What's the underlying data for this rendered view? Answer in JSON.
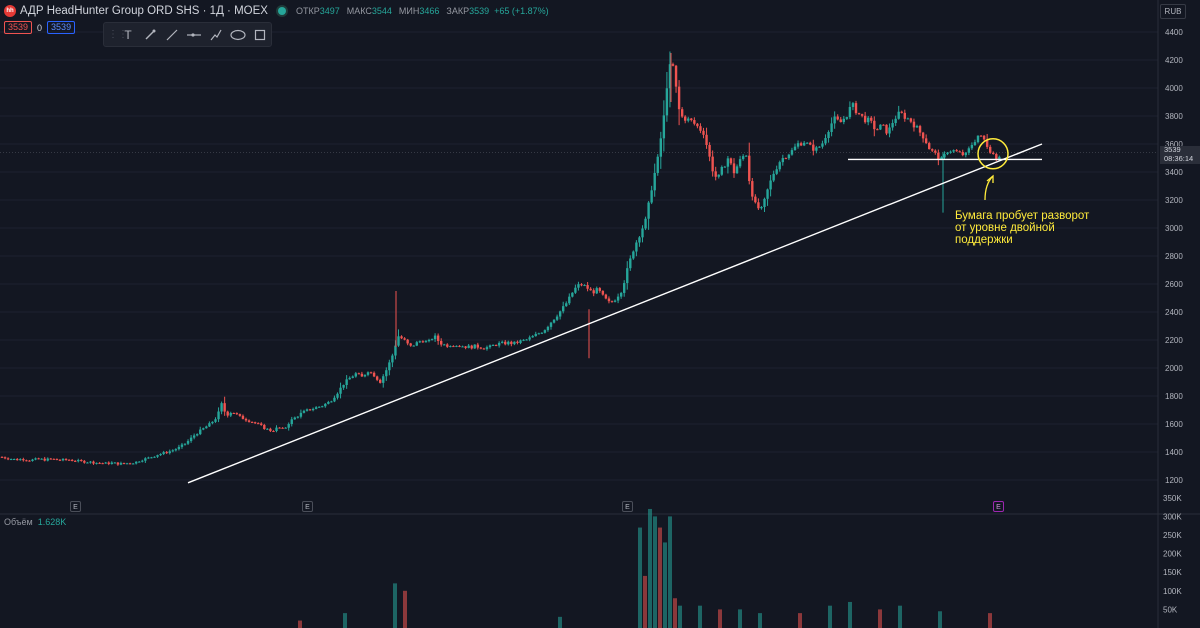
{
  "header": {
    "logo_text": "hh",
    "title": "АДР HeadHunter Group ORD SHS · 1Д · MOEX",
    "open_label": "ОТКР",
    "open": "3497",
    "high_label": "МАКС",
    "high": "3544",
    "low_label": "МИН",
    "low": "3466",
    "close_label": "ЗАКР",
    "close": "3539",
    "change": "+65 (+1.87%)"
  },
  "price_boxes": {
    "sell": "3539",
    "spread": "0",
    "buy": "3539"
  },
  "toolbar": {
    "icons": [
      "text-icon",
      "brush-icon",
      "line-icon",
      "horizontal-ray-icon",
      "path-icon",
      "ellipse-icon",
      "rectangle-icon"
    ]
  },
  "currency": "RUB",
  "current_price": {
    "price": "3539",
    "timer": "08:36:14"
  },
  "events": {
    "label": "E"
  },
  "volume": {
    "label": "Объём",
    "value": "1.628K"
  },
  "annotation": {
    "lines": [
      "Бумага пробует разворот",
      "от уровне двойной",
      "поддержки"
    ]
  },
  "colors": {
    "up": "#26a69a",
    "down": "#ef5350",
    "annotation": "#ffeb3b",
    "background": "#131722"
  },
  "chart_data": {
    "type": "candlestick",
    "price_axis": {
      "ticks": [
        1200,
        1400,
        1600,
        1800,
        2000,
        2200,
        2400,
        2600,
        2800,
        3000,
        3200,
        3400,
        3600,
        3800,
        4000,
        4200,
        4400
      ],
      "tick_labels": [
        "1200",
        "1400",
        "1600",
        "1800",
        "2000",
        "2200",
        "2400",
        "2600",
        "2800",
        "3000",
        "3200",
        "3400",
        "3600",
        "3800",
        "4000",
        "4200",
        "4400"
      ],
      "ylim": [
        1130,
        4530
      ]
    },
    "volume_axis": {
      "ticks": [
        0,
        50000,
        100000,
        150000,
        200000,
        250000,
        300000,
        350000
      ],
      "tick_labels": [
        "50K",
        "100K",
        "150K",
        "200K",
        "250K",
        "300K",
        "350K"
      ]
    },
    "close_path": [
      [
        0,
        1365
      ],
      [
        8,
        1355
      ],
      [
        16,
        1345
      ],
      [
        22,
        1350
      ],
      [
        30,
        1340
      ],
      [
        38,
        1350
      ],
      [
        45,
        1345
      ],
      [
        52,
        1350
      ],
      [
        60,
        1342
      ],
      [
        68,
        1345
      ],
      [
        75,
        1338
      ],
      [
        82,
        1332
      ],
      [
        90,
        1328
      ],
      [
        98,
        1322
      ],
      [
        105,
        1318
      ],
      [
        112,
        1322
      ],
      [
        120,
        1315
      ],
      [
        128,
        1320
      ],
      [
        135,
        1325
      ],
      [
        142,
        1345
      ],
      [
        150,
        1360
      ],
      [
        157,
        1380
      ],
      [
        165,
        1395
      ],
      [
        172,
        1410
      ],
      [
        180,
        1435
      ],
      [
        187,
        1470
      ],
      [
        195,
        1525
      ],
      [
        202,
        1560
      ],
      [
        210,
        1600
      ],
      [
        217,
        1650
      ],
      [
        222,
        1750
      ],
      [
        226,
        1660
      ],
      [
        232,
        1690
      ],
      [
        240,
        1650
      ],
      [
        247,
        1630
      ],
      [
        254,
        1610
      ],
      [
        260,
        1590
      ],
      [
        266,
        1565
      ],
      [
        272,
        1550
      ],
      [
        278,
        1575
      ],
      [
        284,
        1560
      ],
      [
        290,
        1620
      ],
      [
        296,
        1650
      ],
      [
        302,
        1680
      ],
      [
        308,
        1700
      ],
      [
        315,
        1715
      ],
      [
        322,
        1730
      ],
      [
        330,
        1760
      ],
      [
        337,
        1820
      ],
      [
        344,
        1890
      ],
      [
        350,
        1930
      ],
      [
        356,
        1960
      ],
      [
        362,
        1935
      ],
      [
        368,
        1980
      ],
      [
        374,
        1950
      ],
      [
        380,
        1900
      ],
      [
        386,
        1980
      ],
      [
        392,
        2080
      ],
      [
        398,
        2230
      ],
      [
        404,
        2200
      ],
      [
        410,
        2150
      ],
      [
        416,
        2175
      ],
      [
        422,
        2200
      ],
      [
        428,
        2180
      ],
      [
        434,
        2230
      ],
      [
        440,
        2180
      ],
      [
        446,
        2160
      ],
      [
        452,
        2170
      ],
      [
        460,
        2160
      ],
      [
        468,
        2150
      ],
      [
        476,
        2155
      ],
      [
        484,
        2145
      ],
      [
        490,
        2150
      ],
      [
        496,
        2170
      ],
      [
        502,
        2175
      ],
      [
        508,
        2180
      ],
      [
        514,
        2175
      ],
      [
        520,
        2190
      ],
      [
        526,
        2200
      ],
      [
        532,
        2220
      ],
      [
        538,
        2245
      ],
      [
        544,
        2270
      ],
      [
        550,
        2320
      ],
      [
        556,
        2370
      ],
      [
        562,
        2420
      ],
      [
        568,
        2480
      ],
      [
        574,
        2560
      ],
      [
        580,
        2600
      ],
      [
        586,
        2580
      ],
      [
        592,
        2540
      ],
      [
        598,
        2560
      ],
      [
        604,
        2500
      ],
      [
        610,
        2460
      ],
      [
        616,
        2500
      ],
      [
        622,
        2560
      ],
      [
        628,
        2720
      ],
      [
        634,
        2860
      ],
      [
        640,
        2960
      ],
      [
        646,
        3060
      ],
      [
        652,
        3300
      ],
      [
        658,
        3500
      ],
      [
        664,
        3800
      ],
      [
        668,
        4100
      ],
      [
        672,
        4200
      ],
      [
        676,
        4000
      ],
      [
        680,
        3800
      ],
      [
        686,
        3780
      ],
      [
        692,
        3760
      ],
      [
        698,
        3720
      ],
      [
        704,
        3680
      ],
      [
        708,
        3550
      ],
      [
        714,
        3380
      ],
      [
        718,
        3350
      ],
      [
        722,
        3420
      ],
      [
        728,
        3500
      ],
      [
        734,
        3400
      ],
      [
        740,
        3480
      ],
      [
        746,
        3540
      ],
      [
        750,
        3300
      ],
      [
        756,
        3150
      ],
      [
        762,
        3130
      ],
      [
        768,
        3280
      ],
      [
        774,
        3400
      ],
      [
        780,
        3480
      ],
      [
        786,
        3520
      ],
      [
        792,
        3550
      ],
      [
        798,
        3600
      ],
      [
        804,
        3620
      ],
      [
        810,
        3580
      ],
      [
        816,
        3560
      ],
      [
        822,
        3600
      ],
      [
        828,
        3700
      ],
      [
        834,
        3780
      ],
      [
        840,
        3750
      ],
      [
        846,
        3800
      ],
      [
        852,
        3880
      ],
      [
        858,
        3820
      ],
      [
        864,
        3780
      ],
      [
        870,
        3760
      ],
      [
        876,
        3700
      ],
      [
        882,
        3730
      ],
      [
        888,
        3680
      ],
      [
        894,
        3780
      ],
      [
        900,
        3820
      ],
      [
        906,
        3790
      ],
      [
        912,
        3760
      ],
      [
        918,
        3700
      ],
      [
        924,
        3650
      ],
      [
        930,
        3560
      ],
      [
        936,
        3520
      ],
      [
        942,
        3480
      ],
      [
        948,
        3560
      ],
      [
        954,
        3550
      ],
      [
        960,
        3530
      ],
      [
        966,
        3520
      ],
      [
        972,
        3600
      ],
      [
        978,
        3660
      ],
      [
        984,
        3630
      ],
      [
        990,
        3560
      ],
      [
        996,
        3500
      ],
      [
        1002,
        3539
      ]
    ],
    "support_trendline": [
      [
        188,
        1180
      ],
      [
        1042,
        3600
      ]
    ],
    "support_level": [
      [
        848,
        3490
      ],
      [
        1042,
        3490
      ]
    ],
    "highlight_circle": {
      "center_x": 993,
      "center_price": 3530
    },
    "volume": [
      [
        300,
        20000
      ],
      [
        345,
        40000
      ],
      [
        395,
        120000
      ],
      [
        405,
        100000
      ],
      [
        560,
        30000
      ],
      [
        640,
        270000
      ],
      [
        645,
        140000
      ],
      [
        650,
        320000
      ],
      [
        655,
        300000
      ],
      [
        660,
        270000
      ],
      [
        665,
        230000
      ],
      [
        670,
        300000
      ],
      [
        675,
        80000
      ],
      [
        680,
        60000
      ],
      [
        700,
        60000
      ],
      [
        720,
        50000
      ],
      [
        740,
        50000
      ],
      [
        760,
        40000
      ],
      [
        800,
        40000
      ],
      [
        830,
        60000
      ],
      [
        850,
        70000
      ],
      [
        880,
        50000
      ],
      [
        900,
        60000
      ],
      [
        940,
        45000
      ],
      [
        990,
        40000
      ]
    ]
  }
}
